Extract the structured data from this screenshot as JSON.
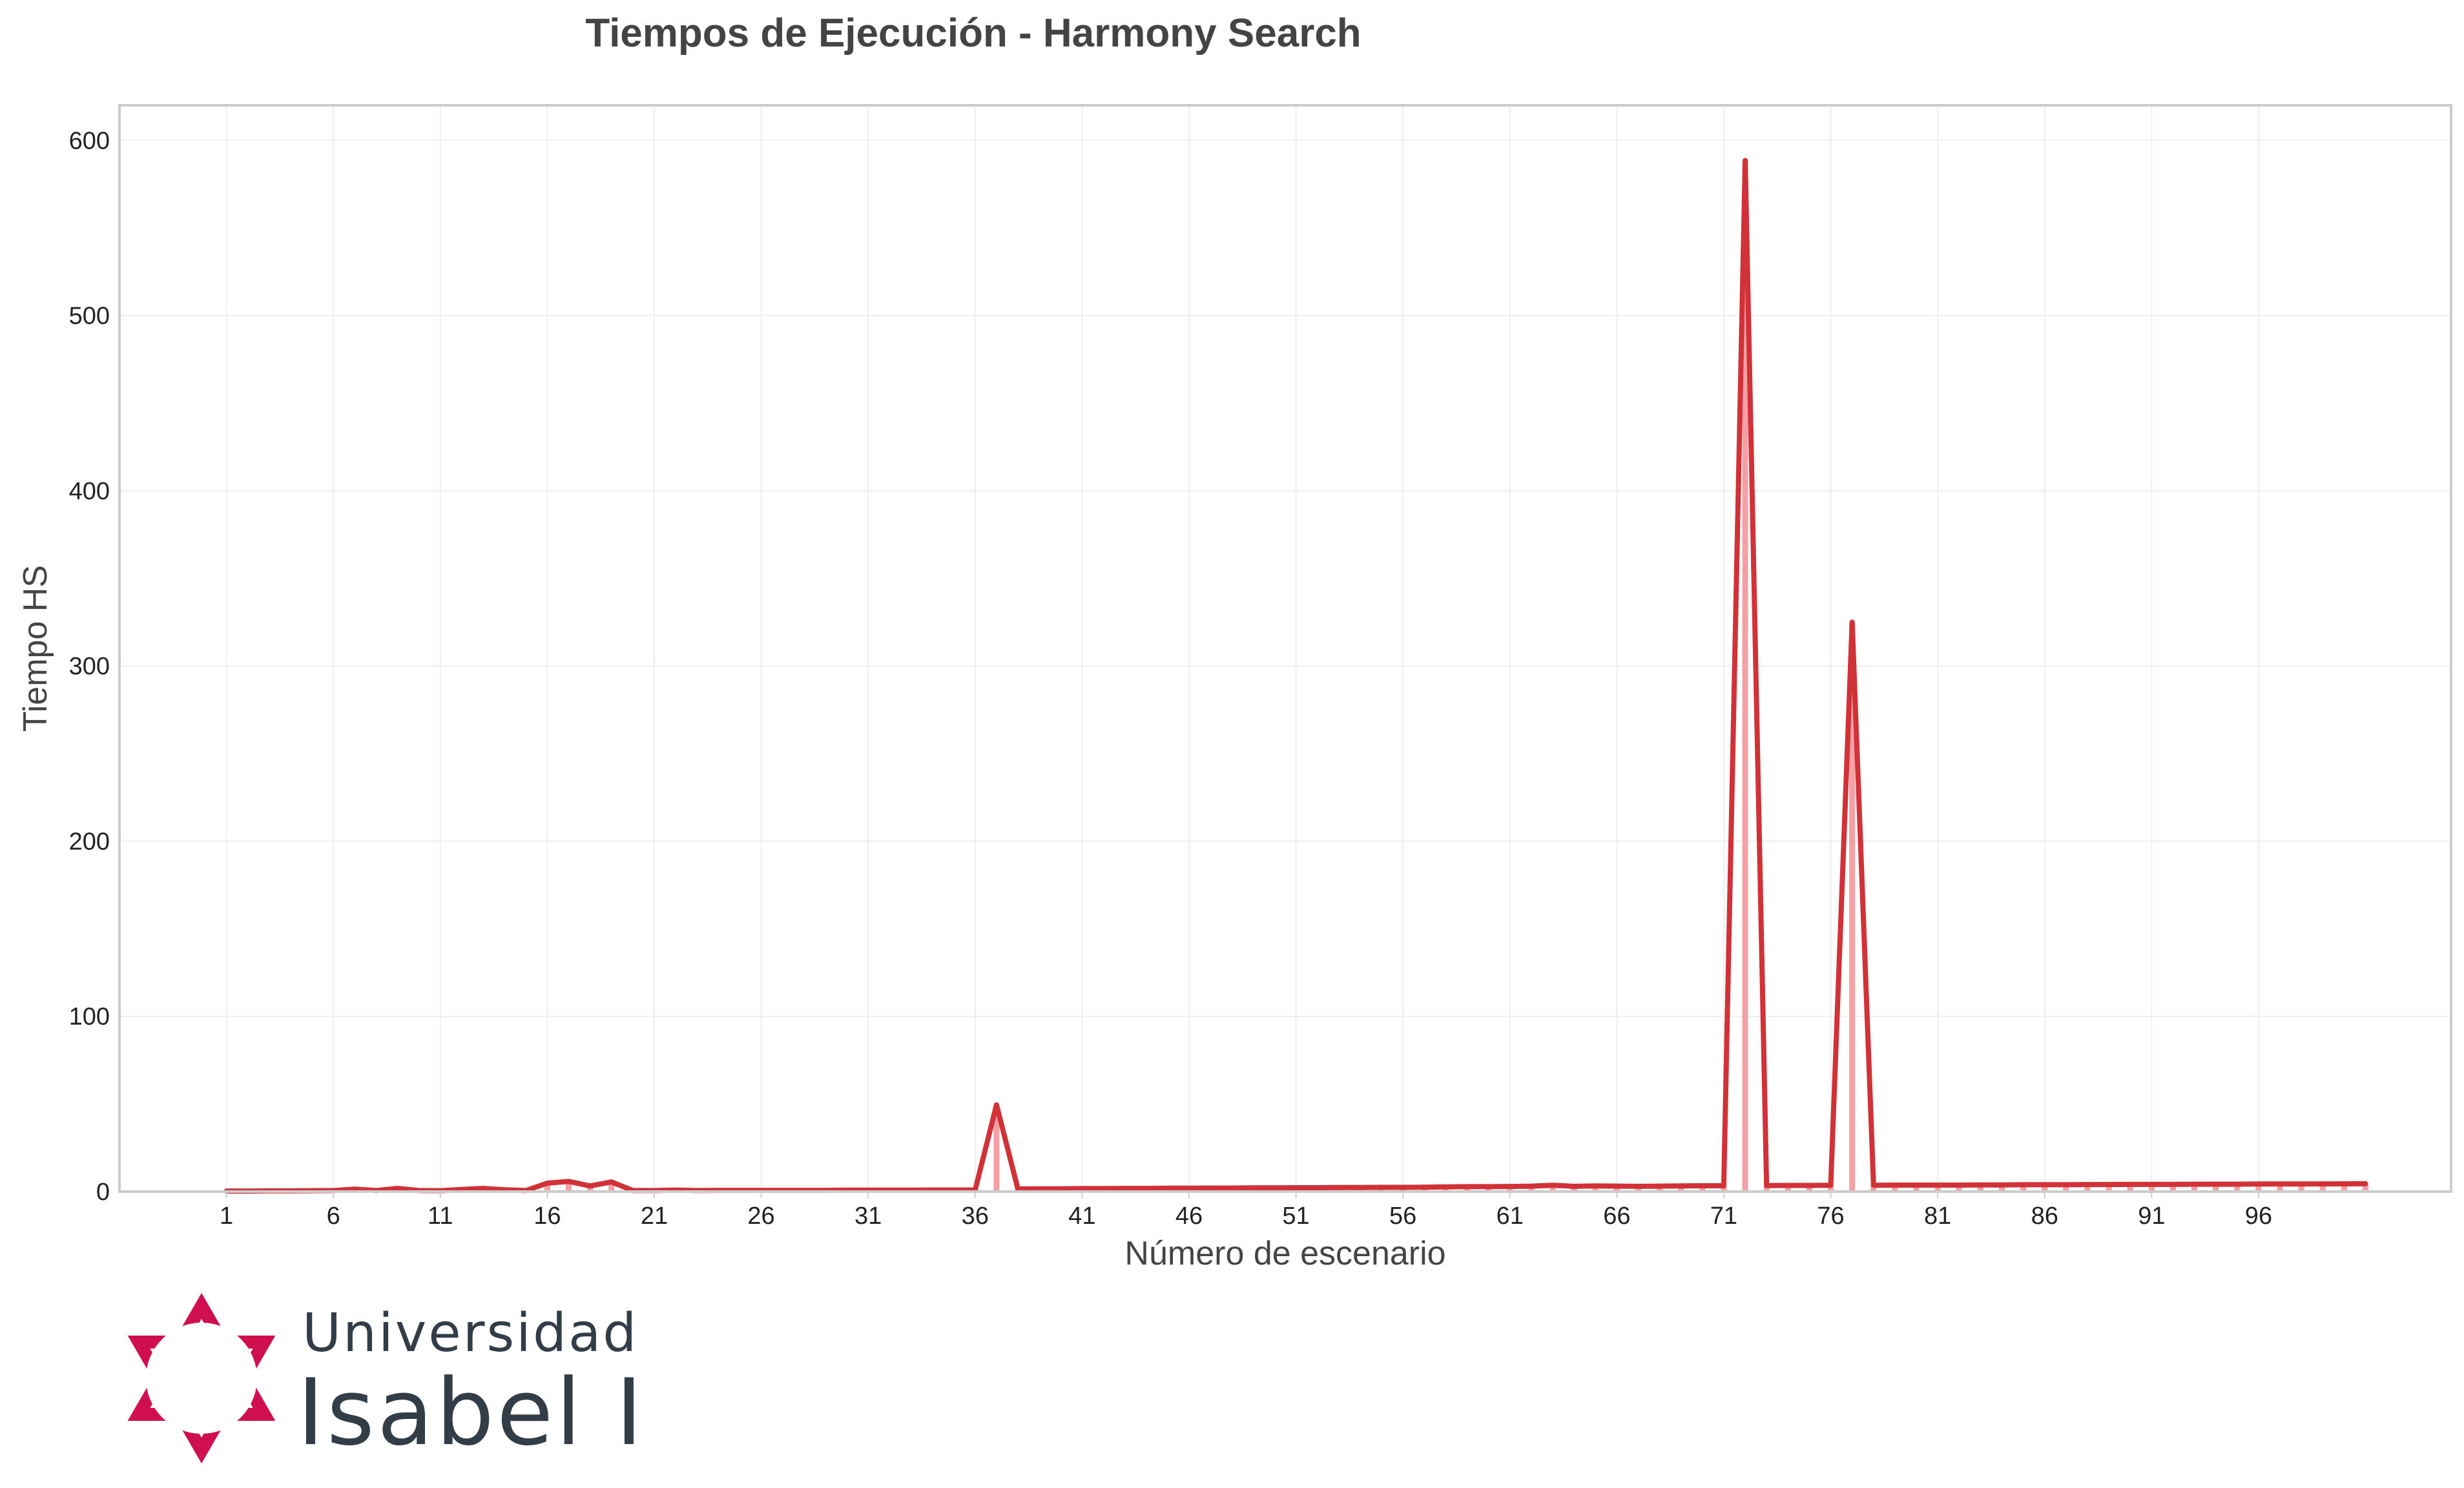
{
  "chart_data": {
    "type": "line",
    "title": "Tiempos de Ejecución - Harmony Search",
    "xlabel": "Número de escenario",
    "ylabel": "Tiempo HS",
    "xlim": [
      -4,
      105
    ],
    "ylim": [
      0,
      620
    ],
    "yticks": [
      0,
      100,
      200,
      300,
      400,
      500,
      600
    ],
    "xticks": [
      1,
      6,
      11,
      16,
      21,
      26,
      31,
      36,
      41,
      46,
      51,
      56,
      61,
      66,
      71,
      76,
      81,
      86,
      91,
      96
    ],
    "grid": true,
    "series": [
      {
        "values": [
          0.3,
          0.3,
          0.4,
          0.4,
          0.5,
          0.6,
          1.4,
          0.6,
          1.8,
          0.6,
          0.5,
          1.2,
          1.8,
          1.0,
          0.6,
          4.8,
          5.8,
          3.2,
          5.5,
          0.6,
          0.6,
          0.9,
          0.6,
          0.7,
          0.7,
          0.7,
          0.7,
          0.7,
          0.7,
          0.8,
          0.8,
          0.8,
          0.8,
          0.9,
          0.9,
          0.9,
          49.5,
          1.5,
          1.6,
          1.6,
          1.7,
          1.7,
          1.8,
          1.8,
          1.9,
          1.9,
          2.0,
          2.0,
          2.1,
          2.1,
          2.2,
          2.2,
          2.3,
          2.3,
          2.4,
          2.4,
          2.5,
          2.7,
          2.8,
          2.8,
          2.9,
          3.1,
          3.6,
          3.0,
          3.2,
          3.1,
          3.0,
          3.1,
          3.2,
          3.3,
          3.3,
          588.5,
          3.4,
          3.5,
          3.5,
          3.6,
          325.0,
          3.6,
          3.7,
          3.7,
          3.7,
          3.7,
          3.8,
          3.8,
          3.9,
          3.9,
          3.9,
          4.0,
          4.0,
          4.1,
          4.1,
          4.1,
          4.2,
          4.2,
          4.2,
          4.3,
          4.3,
          4.3,
          4.4,
          4.4,
          4.5
        ]
      }
    ]
  },
  "colors": {
    "line": "#d03238",
    "fill": "#f4a0a4",
    "grid": "#eeeeee",
    "frame": "#cccccc",
    "logo_accent": "#d0104e",
    "logo_text": "#333d47"
  },
  "logo": {
    "line1": "Universidad",
    "line2": "Isabel I"
  }
}
